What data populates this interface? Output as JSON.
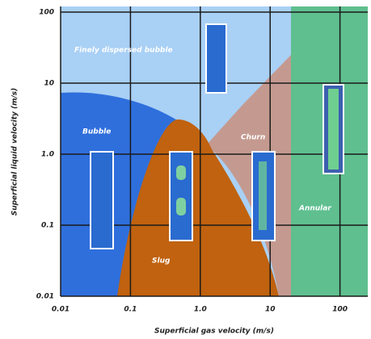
{
  "chart_data": {
    "type": "regime-map",
    "xlabel": "Superficial gas velocity (m/s)",
    "ylabel": "Superficial liquid velocity (m/s)",
    "xscale": "log",
    "yscale": "log",
    "xlim": [
      0.01,
      250
    ],
    "ylim": [
      0.01,
      120
    ],
    "xticks": [
      0.01,
      0.1,
      {
        "value": 1,
        "label": "1.0"
      },
      10,
      100
    ],
    "yticks": [
      0.01,
      0.1,
      {
        "value": 1,
        "label": "1.0"
      },
      10,
      100
    ],
    "grid": true,
    "regions": [
      {
        "label": "Finely dispersed bubble"
      },
      {
        "label": "Bubble"
      },
      {
        "label": "Slug"
      },
      {
        "label": "Churn"
      },
      {
        "label": "Annular"
      }
    ]
  }
}
